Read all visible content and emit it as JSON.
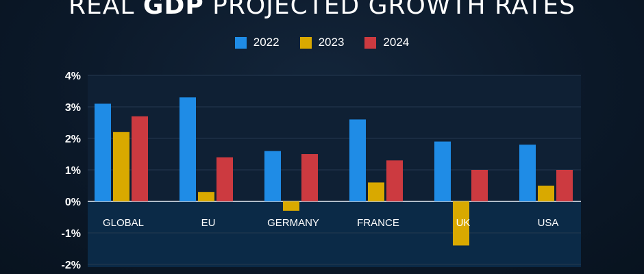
{
  "title": {
    "prefix": "REAL ",
    "highlight": "GDP",
    "suffix": " PROJECTED GROWTH RATES"
  },
  "colors": {
    "2022": "#1f8ce6",
    "2023": "#d9a900",
    "2024": "#cc3a40",
    "uk_label": "#e2b100"
  },
  "chart_data": {
    "type": "bar",
    "title": "REAL GDP PROJECTED GROWTH RATES",
    "categories": [
      "GLOBAL",
      "EU",
      "GERMANY",
      "FRANCE",
      "UK",
      "USA"
    ],
    "series": [
      {
        "name": "2022",
        "values": [
          3.1,
          3.3,
          1.6,
          2.6,
          1.9,
          1.8
        ]
      },
      {
        "name": "2023",
        "values": [
          2.2,
          0.3,
          -0.3,
          0.6,
          -1.4,
          0.5
        ]
      },
      {
        "name": "2024",
        "values": [
          2.7,
          1.4,
          1.5,
          1.3,
          1.0,
          1.0
        ]
      }
    ],
    "y_ticks": [
      "4%",
      "3%",
      "2%",
      "1%",
      "0%",
      "-1%",
      "-2%"
    ],
    "ylim": [
      -2,
      4
    ],
    "legend_position": "top-center",
    "grid": true
  }
}
